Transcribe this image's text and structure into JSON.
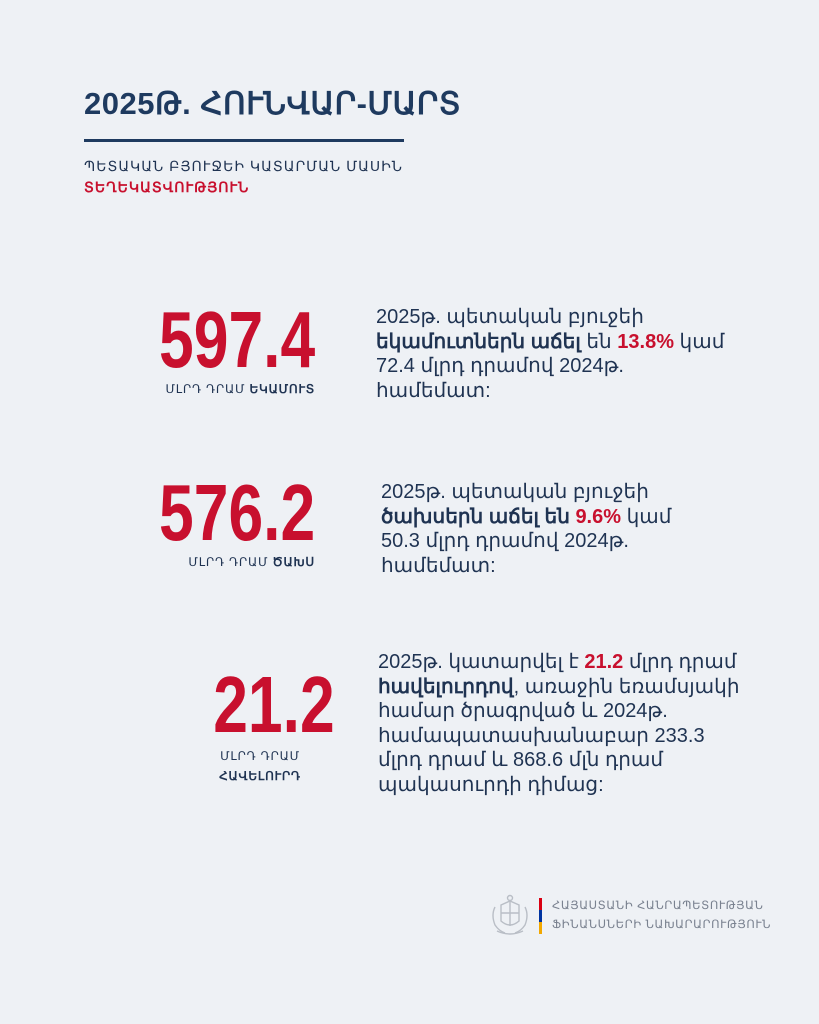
{
  "header": {
    "title": "2025Թ. ՀՈՒՆՎԱՐ-ՄԱՐՏ",
    "subtitle": "ՊԵՏԱԿԱՆ ԲՅՈՒՋԵԻ ԿԱՏԱՐՄԱՆ ՄԱՍԻՆ",
    "subtitle_accent": "ՏԵՂԵԿԱՏՎՈՒԹՅՈՒՆ"
  },
  "stats": [
    {
      "value": "597.4",
      "caption_prefix": "ՄԼՐԴ ԴՐԱՄ",
      "caption_bold": "ԵԿԱՄՈՒՏ",
      "text_1": "2025թ. պետական բյուջեի",
      "text_bold": "եկամուտներն աճել",
      "text_2": "են",
      "percent": "13.8%",
      "text_3": "կամ 72.4 մլրդ դրամով 2024թ. համեմատ:"
    },
    {
      "value": "576.2",
      "caption_prefix": "ՄԼՐԴ ԴՐԱՄ",
      "caption_bold": "ԾԱԽՍ",
      "text_1": "2025թ. պետական բյուջեի",
      "text_bold": "ծախսերն աճել են",
      "percent": "9.6%",
      "text_3": "կամ 50.3 մլրդ դրամով 2024թ. համեմատ:"
    },
    {
      "value": "21.2",
      "caption_prefix": "ՄԼՐԴ ԴՐԱՄ",
      "caption_bold": "ՀԱՎԵԼՈՒՐԴ",
      "text_1": "2025թ. կատարվել է",
      "highlight": "21.2",
      "text_2": "մլրդ դրամ",
      "text_bold": "հավելուրդով",
      "text_3": ", առաջին եռամսյակի համար ծրագրված և 2024թ. համապատասխանաբար 233.3 մլրդ դրամ և 868.6 մլն դրամ պակասուրդի դիմաց:"
    }
  ],
  "footer": {
    "line1": "ՀԱՅԱՍՏԱՆԻ ՀԱՆՐԱՊԵՏՈՒԹՅԱՆ",
    "line2": "ՖԻՆԱՆՍՆԵՐԻ ՆԱԽԱՐԱՐՈՒԹՅՈՒՆ",
    "emblem_icon": "armenian-coat-of-arms-icon",
    "flag_colors": [
      "#d90012",
      "#0033a0",
      "#f2a800"
    ]
  },
  "colors": {
    "accent": "#c8102e",
    "text": "#1f3352",
    "background": "#eef1f5"
  }
}
